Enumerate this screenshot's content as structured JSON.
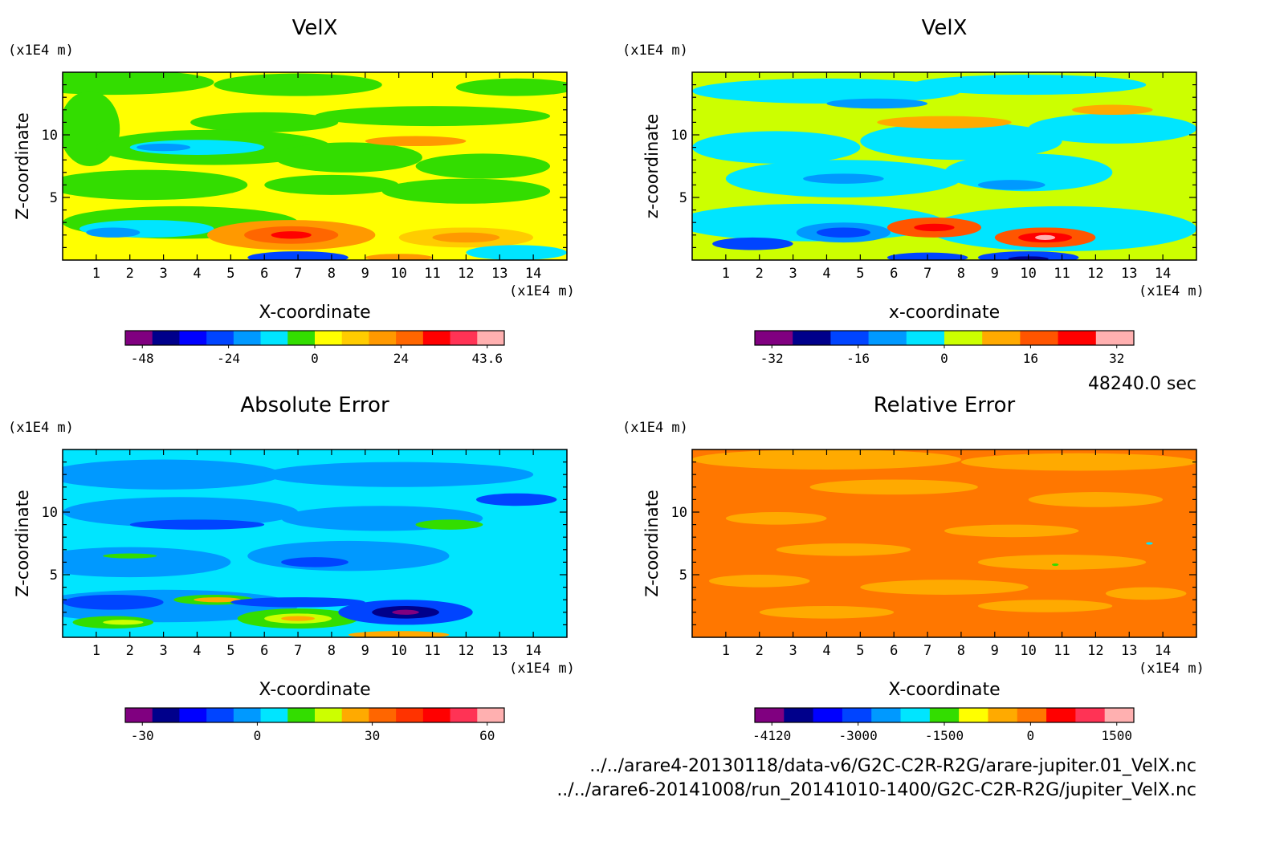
{
  "time_label": "48240.0 sec",
  "file_line_1": "../../arare4-20130118/data-v6/G2C-C2R-R2G/arare-jupiter.01_VelX.nc",
  "file_line_2": "../../arare6-20141008/run_20141010-1400/G2C-C2R-R2G/jupiter_VelX.nc",
  "chart_data": [
    {
      "type": "heatmap",
      "title": "VelX",
      "xlabel": "X-coordinate",
      "ylabel": "Z-coordinate",
      "x_unit": "(x1E4 m)",
      "y_unit": "(x1E4 m)",
      "xlim": [
        0,
        15
      ],
      "ylim": [
        0,
        15
      ],
      "x_ticks": [
        1,
        2,
        3,
        4,
        5,
        6,
        7,
        8,
        9,
        10,
        11,
        12,
        13,
        14
      ],
      "y_ticks": [
        5,
        10
      ],
      "background": "#ffff00",
      "colorbar": {
        "colors": [
          "#800080",
          "#00008b",
          "#0000ff",
          "#0044ff",
          "#0099ff",
          "#00e5ff",
          "#33dd00",
          "#ffff00",
          "#ffcc00",
          "#ff9900",
          "#ff6600",
          "#ff0000",
          "#ff3355",
          "#ffb0b0"
        ],
        "tick_labels": [
          "-48",
          "-24",
          "0",
          "24",
          "43.6"
        ]
      },
      "features": [
        {
          "x": 1.5,
          "z": 14.2,
          "rx": 3,
          "rz": 1.0,
          "color": "#33dd00"
        },
        {
          "x": 7,
          "z": 14.0,
          "rx": 2.5,
          "rz": 0.9,
          "color": "#33dd00"
        },
        {
          "x": 13.5,
          "z": 13.8,
          "rx": 1.8,
          "rz": 0.7,
          "color": "#33dd00"
        },
        {
          "x": 0.8,
          "z": 10.5,
          "rx": 0.9,
          "rz": 3.0,
          "color": "#33dd00"
        },
        {
          "x": 6,
          "z": 11.0,
          "rx": 2.2,
          "rz": 0.8,
          "color": "#33dd00"
        },
        {
          "x": 11,
          "z": 11.5,
          "rx": 3.5,
          "rz": 0.8,
          "color": "#33dd00"
        },
        {
          "x": 4.5,
          "z": 9.0,
          "rx": 3.5,
          "rz": 1.4,
          "color": "#33dd00"
        },
        {
          "x": 4.0,
          "z": 9.0,
          "rx": 2.0,
          "rz": 0.6,
          "color": "#00e5ff"
        },
        {
          "x": 3.0,
          "z": 9.0,
          "rx": 0.8,
          "rz": 0.3,
          "color": "#0099ff"
        },
        {
          "x": 8.5,
          "z": 8.2,
          "rx": 2.2,
          "rz": 1.2,
          "color": "#33dd00"
        },
        {
          "x": 12.5,
          "z": 7.5,
          "rx": 2.0,
          "rz": 1.0,
          "color": "#33dd00"
        },
        {
          "x": 10.5,
          "z": 9.5,
          "rx": 1.5,
          "rz": 0.4,
          "color": "#ff9900"
        },
        {
          "x": 2.5,
          "z": 6.0,
          "rx": 3.0,
          "rz": 1.2,
          "color": "#33dd00"
        },
        {
          "x": 8.0,
          "z": 6.0,
          "rx": 2.0,
          "rz": 0.8,
          "color": "#33dd00"
        },
        {
          "x": 12.0,
          "z": 5.5,
          "rx": 2.5,
          "rz": 1.0,
          "color": "#33dd00"
        },
        {
          "x": 3.5,
          "z": 3.0,
          "rx": 3.5,
          "rz": 1.3,
          "color": "#33dd00"
        },
        {
          "x": 2.5,
          "z": 2.5,
          "rx": 2.0,
          "rz": 0.7,
          "color": "#00e5ff"
        },
        {
          "x": 1.5,
          "z": 2.2,
          "rx": 0.8,
          "rz": 0.4,
          "color": "#0099ff"
        },
        {
          "x": 6.8,
          "z": 2.0,
          "rx": 2.5,
          "rz": 1.2,
          "color": "#ff9900"
        },
        {
          "x": 6.8,
          "z": 2.0,
          "rx": 1.4,
          "rz": 0.7,
          "color": "#ff6600"
        },
        {
          "x": 6.8,
          "z": 2.0,
          "rx": 0.6,
          "rz": 0.3,
          "color": "#ff0000"
        },
        {
          "x": 12.0,
          "z": 1.8,
          "rx": 2.0,
          "rz": 0.8,
          "color": "#ffcc00"
        },
        {
          "x": 12.0,
          "z": 1.8,
          "rx": 1.0,
          "rz": 0.4,
          "color": "#ff9900"
        },
        {
          "x": 7.0,
          "z": 0.2,
          "rx": 1.5,
          "rz": 0.5,
          "color": "#0044ff"
        },
        {
          "x": 10.0,
          "z": 0.2,
          "rx": 1.0,
          "rz": 0.3,
          "color": "#ff9900"
        },
        {
          "x": 13.5,
          "z": 0.6,
          "rx": 1.5,
          "rz": 0.6,
          "color": "#00e5ff"
        }
      ]
    },
    {
      "type": "heatmap",
      "title": "VelX",
      "xlabel": "x-coordinate",
      "ylabel": "z-coordinate",
      "x_unit": "(x1E4 m)",
      "y_unit": "(x1E4 m)",
      "xlim": [
        0,
        15
      ],
      "ylim": [
        0,
        15
      ],
      "x_ticks": [
        1,
        2,
        3,
        4,
        5,
        6,
        7,
        8,
        9,
        10,
        11,
        12,
        13,
        14
      ],
      "y_ticks": [
        5,
        10
      ],
      "background": "#ccff00",
      "colorbar": {
        "colors": [
          "#800080",
          "#00008b",
          "#0044ff",
          "#0099ff",
          "#00e5ff",
          "#ccff00",
          "#ffaa00",
          "#ff5500",
          "#ff0000",
          "#ffb0b0"
        ],
        "tick_labels": [
          "-32",
          "-16",
          "0",
          "16",
          "32"
        ]
      },
      "features": [
        {
          "x": 4.0,
          "z": 13.5,
          "rx": 4.0,
          "rz": 1.0,
          "color": "#00e5ff"
        },
        {
          "x": 10.0,
          "z": 14.0,
          "rx": 3.5,
          "rz": 0.8,
          "color": "#00e5ff"
        },
        {
          "x": 5.5,
          "z": 12.5,
          "rx": 1.5,
          "rz": 0.4,
          "color": "#0099ff"
        },
        {
          "x": 2.5,
          "z": 9.0,
          "rx": 2.5,
          "rz": 1.3,
          "color": "#00e5ff"
        },
        {
          "x": 8.0,
          "z": 9.5,
          "rx": 3.0,
          "rz": 1.5,
          "color": "#00e5ff"
        },
        {
          "x": 12.5,
          "z": 10.5,
          "rx": 2.5,
          "rz": 1.2,
          "color": "#00e5ff"
        },
        {
          "x": 7.5,
          "z": 11.0,
          "rx": 2.0,
          "rz": 0.5,
          "color": "#ffaa00"
        },
        {
          "x": 12.5,
          "z": 12.0,
          "rx": 1.2,
          "rz": 0.4,
          "color": "#ffaa00"
        },
        {
          "x": 4.5,
          "z": 6.5,
          "rx": 3.5,
          "rz": 1.5,
          "color": "#00e5ff"
        },
        {
          "x": 10.0,
          "z": 7.0,
          "rx": 2.5,
          "rz": 1.5,
          "color": "#00e5ff"
        },
        {
          "x": 4.5,
          "z": 6.5,
          "rx": 1.2,
          "rz": 0.4,
          "color": "#0099ff"
        },
        {
          "x": 9.5,
          "z": 6.0,
          "rx": 1.0,
          "rz": 0.4,
          "color": "#0099ff"
        },
        {
          "x": 3.5,
          "z": 3.0,
          "rx": 4.0,
          "rz": 1.5,
          "color": "#00e5ff"
        },
        {
          "x": 11.0,
          "z": 2.5,
          "rx": 4.0,
          "rz": 1.8,
          "color": "#00e5ff"
        },
        {
          "x": 4.5,
          "z": 2.2,
          "rx": 1.4,
          "rz": 0.8,
          "color": "#0099ff"
        },
        {
          "x": 4.5,
          "z": 2.2,
          "rx": 0.8,
          "rz": 0.4,
          "color": "#0044ff"
        },
        {
          "x": 1.8,
          "z": 1.3,
          "rx": 1.2,
          "rz": 0.5,
          "color": "#0044ff"
        },
        {
          "x": 7.2,
          "z": 2.6,
          "rx": 1.4,
          "rz": 0.8,
          "color": "#ff5500"
        },
        {
          "x": 7.2,
          "z": 2.6,
          "rx": 0.6,
          "rz": 0.3,
          "color": "#ff0000"
        },
        {
          "x": 10.5,
          "z": 1.8,
          "rx": 1.5,
          "rz": 0.8,
          "color": "#ff5500"
        },
        {
          "x": 10.5,
          "z": 1.8,
          "rx": 0.8,
          "rz": 0.4,
          "color": "#ff0000"
        },
        {
          "x": 10.5,
          "z": 1.8,
          "rx": 0.3,
          "rz": 0.2,
          "color": "#ffb0b0"
        },
        {
          "x": 10.0,
          "z": 0.2,
          "rx": 1.5,
          "rz": 0.5,
          "color": "#0044ff"
        },
        {
          "x": 10.0,
          "z": 0.1,
          "rx": 0.6,
          "rz": 0.2,
          "color": "#00008b"
        },
        {
          "x": 7.0,
          "z": 0.2,
          "rx": 1.2,
          "rz": 0.4,
          "color": "#0044ff"
        }
      ]
    },
    {
      "type": "heatmap",
      "title": "Absolute Error",
      "xlabel": "X-coordinate",
      "ylabel": "Z-coordinate",
      "x_unit": "(x1E4 m)",
      "y_unit": "(x1E4 m)",
      "xlim": [
        0,
        15
      ],
      "ylim": [
        0,
        15
      ],
      "x_ticks": [
        1,
        2,
        3,
        4,
        5,
        6,
        7,
        8,
        9,
        10,
        11,
        12,
        13,
        14
      ],
      "y_ticks": [
        5,
        10
      ],
      "background": "#00e5ff",
      "colorbar": {
        "colors": [
          "#800080",
          "#00008b",
          "#0000ff",
          "#0044ff",
          "#0099ff",
          "#00e5ff",
          "#33dd00",
          "#ccff00",
          "#ffaa00",
          "#ff6600",
          "#ff3300",
          "#ff0000",
          "#ff3355",
          "#ffb0b0"
        ],
        "tick_labels": [
          "-30",
          "0",
          "30",
          "60"
        ]
      },
      "features": [
        {
          "x": 3.0,
          "z": 13.0,
          "rx": 3.5,
          "rz": 1.2,
          "color": "#0099ff"
        },
        {
          "x": 10.0,
          "z": 13.0,
          "rx": 4.0,
          "rz": 1.0,
          "color": "#0099ff"
        },
        {
          "x": 3.5,
          "z": 10.0,
          "rx": 3.5,
          "rz": 1.2,
          "color": "#0099ff"
        },
        {
          "x": 9.5,
          "z": 9.5,
          "rx": 3.0,
          "rz": 1.0,
          "color": "#0099ff"
        },
        {
          "x": 4.0,
          "z": 9.0,
          "rx": 2.0,
          "rz": 0.4,
          "color": "#0044ff"
        },
        {
          "x": 11.5,
          "z": 9.0,
          "rx": 1.0,
          "rz": 0.4,
          "color": "#33dd00"
        },
        {
          "x": 13.5,
          "z": 11.0,
          "rx": 1.2,
          "rz": 0.5,
          "color": "#0044ff"
        },
        {
          "x": 2.0,
          "z": 6.0,
          "rx": 3.0,
          "rz": 1.2,
          "color": "#0099ff"
        },
        {
          "x": 8.5,
          "z": 6.5,
          "rx": 3.0,
          "rz": 1.2,
          "color": "#0099ff"
        },
        {
          "x": 7.5,
          "z": 6.0,
          "rx": 1.0,
          "rz": 0.4,
          "color": "#0044ff"
        },
        {
          "x": 2.0,
          "z": 6.5,
          "rx": 0.8,
          "rz": 0.2,
          "color": "#33dd00"
        },
        {
          "x": 3.0,
          "z": 2.5,
          "rx": 4.0,
          "rz": 1.3,
          "color": "#0099ff"
        },
        {
          "x": 1.5,
          "z": 2.8,
          "rx": 1.5,
          "rz": 0.6,
          "color": "#0044ff"
        },
        {
          "x": 1.5,
          "z": 1.2,
          "rx": 1.2,
          "rz": 0.5,
          "color": "#33dd00"
        },
        {
          "x": 1.8,
          "z": 1.2,
          "rx": 0.6,
          "rz": 0.2,
          "color": "#ccff00"
        },
        {
          "x": 4.5,
          "z": 3.0,
          "rx": 1.2,
          "rz": 0.4,
          "color": "#33dd00"
        },
        {
          "x": 4.6,
          "z": 3.0,
          "rx": 0.7,
          "rz": 0.2,
          "color": "#ffaa00"
        },
        {
          "x": 7.0,
          "z": 1.5,
          "rx": 1.8,
          "rz": 0.8,
          "color": "#33dd00"
        },
        {
          "x": 7.0,
          "z": 1.5,
          "rx": 1.0,
          "rz": 0.4,
          "color": "#ccff00"
        },
        {
          "x": 7.0,
          "z": 1.5,
          "rx": 0.5,
          "rz": 0.2,
          "color": "#ffaa00"
        },
        {
          "x": 10.2,
          "z": 2.0,
          "rx": 2.0,
          "rz": 1.0,
          "color": "#0044ff"
        },
        {
          "x": 10.2,
          "z": 2.0,
          "rx": 1.0,
          "rz": 0.5,
          "color": "#00008b"
        },
        {
          "x": 10.2,
          "z": 2.0,
          "rx": 0.4,
          "rz": 0.2,
          "color": "#800080"
        },
        {
          "x": 10.0,
          "z": 0.2,
          "rx": 1.5,
          "rz": 0.3,
          "color": "#ffaa00"
        },
        {
          "x": 7.0,
          "z": 2.8,
          "rx": 2.0,
          "rz": 0.4,
          "color": "#0044ff"
        }
      ]
    },
    {
      "type": "heatmap",
      "title": "Relative Error",
      "xlabel": "X-coordinate",
      "ylabel": "Z-coordinate",
      "x_unit": "(x1E4 m)",
      "y_unit": "(x1E4 m)",
      "xlim": [
        0,
        15
      ],
      "ylim": [
        0,
        15
      ],
      "x_ticks": [
        1,
        2,
        3,
        4,
        5,
        6,
        7,
        8,
        9,
        10,
        11,
        12,
        13,
        14
      ],
      "y_ticks": [
        5,
        10
      ],
      "background": "#ff7700",
      "colorbar": {
        "colors": [
          "#800080",
          "#00008b",
          "#0000ff",
          "#0044ff",
          "#0099ff",
          "#00e5ff",
          "#33dd00",
          "#ffff00",
          "#ffaa00",
          "#ff7700",
          "#ff0000",
          "#ff3355",
          "#ffb0b0"
        ],
        "tick_labels": [
          "-4120",
          "-3000",
          "-1500",
          "0",
          "1500"
        ]
      },
      "features": [
        {
          "x": 4.0,
          "z": 14.2,
          "rx": 4.0,
          "rz": 0.8,
          "color": "#ffaa00"
        },
        {
          "x": 11.5,
          "z": 14.0,
          "rx": 3.5,
          "rz": 0.7,
          "color": "#ffaa00"
        },
        {
          "x": 6.0,
          "z": 12.0,
          "rx": 2.5,
          "rz": 0.6,
          "color": "#ffaa00"
        },
        {
          "x": 12.0,
          "z": 11.0,
          "rx": 2.0,
          "rz": 0.6,
          "color": "#ffaa00"
        },
        {
          "x": 2.5,
          "z": 9.5,
          "rx": 1.5,
          "rz": 0.5,
          "color": "#ffaa00"
        },
        {
          "x": 9.5,
          "z": 8.5,
          "rx": 2.0,
          "rz": 0.5,
          "color": "#ffaa00"
        },
        {
          "x": 4.5,
          "z": 7.0,
          "rx": 2.0,
          "rz": 0.5,
          "color": "#ffaa00"
        },
        {
          "x": 11.0,
          "z": 6.0,
          "rx": 2.5,
          "rz": 0.6,
          "color": "#ffaa00"
        },
        {
          "x": 2.0,
          "z": 4.5,
          "rx": 1.5,
          "rz": 0.5,
          "color": "#ffaa00"
        },
        {
          "x": 7.5,
          "z": 4.0,
          "rx": 2.5,
          "rz": 0.6,
          "color": "#ffaa00"
        },
        {
          "x": 4.0,
          "z": 2.0,
          "rx": 2.0,
          "rz": 0.5,
          "color": "#ffaa00"
        },
        {
          "x": 10.5,
          "z": 2.5,
          "rx": 2.0,
          "rz": 0.5,
          "color": "#ffaa00"
        },
        {
          "x": 13.5,
          "z": 3.5,
          "rx": 1.2,
          "rz": 0.5,
          "color": "#ffaa00"
        },
        {
          "x": 13.6,
          "z": 7.5,
          "rx": 0.1,
          "rz": 0.1,
          "color": "#00e5ff"
        },
        {
          "x": 10.8,
          "z": 5.8,
          "rx": 0.1,
          "rz": 0.1,
          "color": "#33dd00"
        }
      ]
    }
  ]
}
